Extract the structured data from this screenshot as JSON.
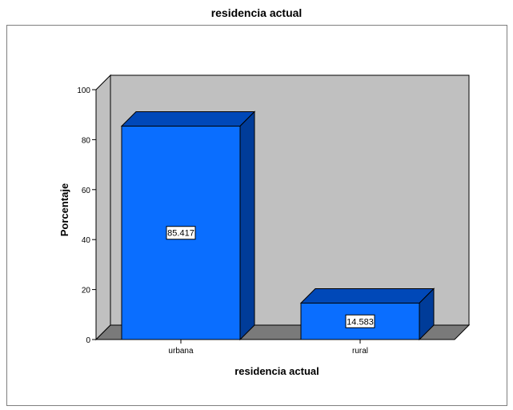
{
  "chart_data": {
    "type": "bar",
    "title": "residencia actual",
    "xlabel": "residencia actual",
    "ylabel": "Porcentaje",
    "categories": [
      "urbana",
      "rural"
    ],
    "values": [
      85.417,
      14.583
    ],
    "data_labels": [
      "85.417",
      "14.583"
    ],
    "ylim": [
      0,
      100
    ],
    "yticks": [
      0,
      20,
      40,
      60,
      80,
      100
    ],
    "grid": false,
    "legend": "none",
    "colors": {
      "bar_front": "#0a6eff",
      "bar_side": "#003c99",
      "bar_top": "#0048b8",
      "back_wall": "#c0c0c0",
      "floor": "#7a7a7a"
    }
  }
}
